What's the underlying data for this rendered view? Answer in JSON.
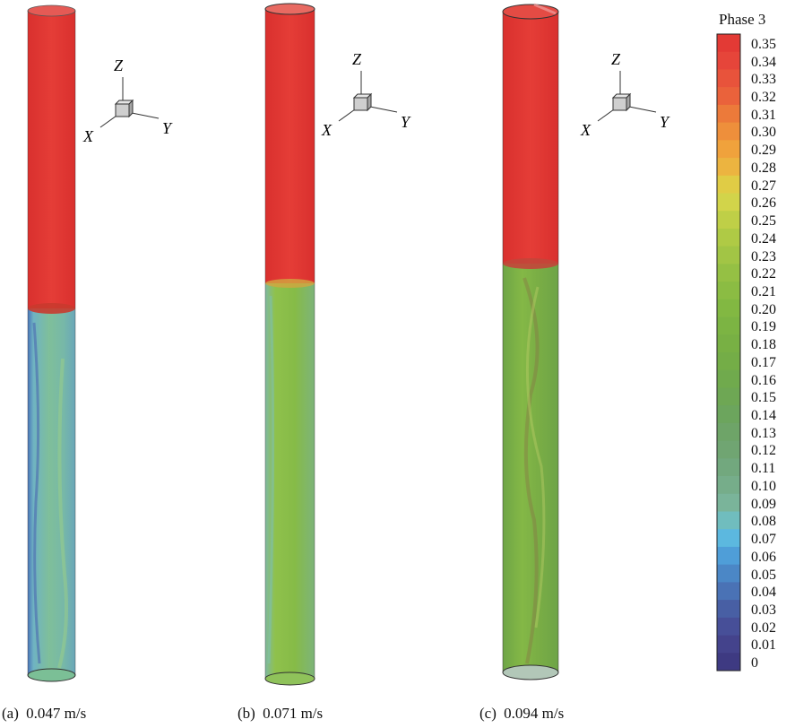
{
  "panels": [
    {
      "label": "(a)",
      "velocity": "0.047 m/s",
      "interface_fraction": 0.45
    },
    {
      "label": "(b)",
      "velocity": "0.071 m/s",
      "interface_fraction": 0.41
    },
    {
      "label": "(c)",
      "velocity": "0.094 m/s",
      "interface_fraction": 0.37
    }
  ],
  "axes_triad": {
    "x": "X",
    "y": "Y",
    "z": "Z"
  },
  "legend": {
    "title": "Phase 3",
    "values": [
      "0.35",
      "0.34",
      "0.33",
      "0.32",
      "0.31",
      "0.30",
      "0.29",
      "0.28",
      "0.27",
      "0.26",
      "0.25",
      "0.24",
      "0.23",
      "0.22",
      "0.21",
      "0.20",
      "0.19",
      "0.18",
      "0.17",
      "0.16",
      "0.15",
      "0.14",
      "0.13",
      "0.12",
      "0.11",
      "0.10",
      "0.09",
      "0.08",
      "0.07",
      "0.06",
      "0.05",
      "0.04",
      "0.03",
      "0.02",
      "0.01",
      "0"
    ],
    "colors": [
      "#e33a35",
      "#e6453a",
      "#e8533b",
      "#ea623b",
      "#ec7a3a",
      "#ee8f3b",
      "#f0a23c",
      "#ecb440",
      "#e0cc45",
      "#d2d44a",
      "#bfcf47",
      "#afca45",
      "#a2c545",
      "#95c044",
      "#8bbc43",
      "#82b842",
      "#7cb443",
      "#78b044",
      "#74ad47",
      "#70aa4d",
      "#6ea754",
      "#6ca55d",
      "#6ea468",
      "#70a572",
      "#72a87e",
      "#76ad8a",
      "#7ab49a",
      "#70bdbe",
      "#5cb8df",
      "#4f9ed8",
      "#4b87c6",
      "#4a72b5",
      "#485fa4",
      "#474f98",
      "#44438c",
      "#3e3a82"
    ]
  },
  "colors": {
    "top_phase": "#e33b35",
    "a_bottom": "#79b6a0",
    "b_bottom": "#86bb47",
    "c_bottom": "#7cae44"
  }
}
